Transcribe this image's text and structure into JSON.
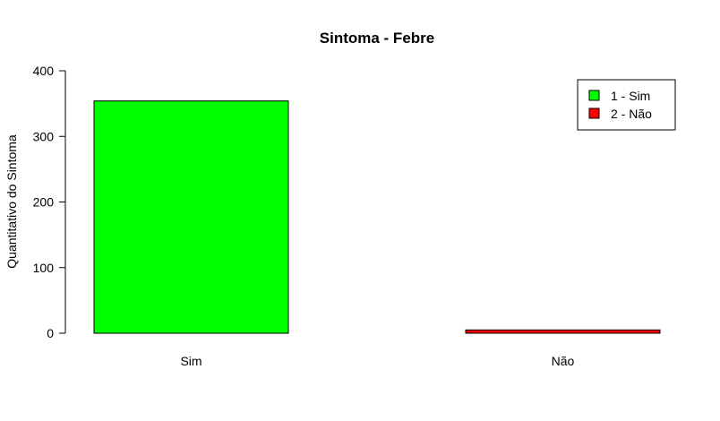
{
  "chart_data": {
    "type": "bar",
    "title": "Sintoma - Febre",
    "xlabel": "",
    "ylabel": "Quantitativo do Sintoma",
    "categories": [
      "Sim",
      "Não"
    ],
    "values": [
      354,
      5
    ],
    "colors": [
      "#00ff00",
      "#ff0000"
    ],
    "ylim": [
      0,
      400
    ],
    "yticks": [
      0,
      100,
      200,
      300,
      400
    ],
    "grid": false,
    "legend": {
      "placement": "top-right",
      "entries": [
        {
          "label": "1 - Sim",
          "color": "#00ff00"
        },
        {
          "label": "2 - Não",
          "color": "#ff0000"
        }
      ]
    }
  }
}
